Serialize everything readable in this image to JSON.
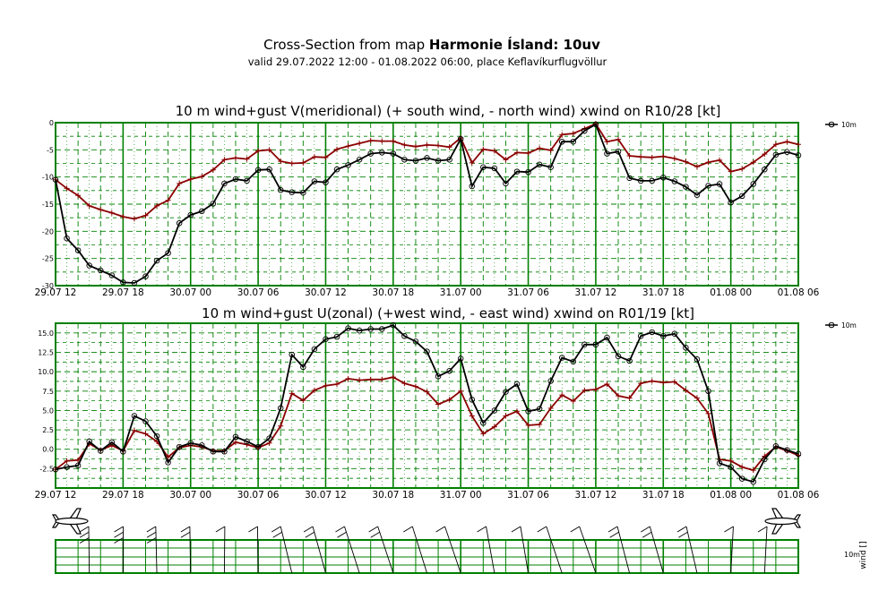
{
  "title": {
    "prefix": "Cross-Section from map ",
    "bold": "Harmonie Ísland: 10uv",
    "subtitle": "valid 29.07.2022 12:00 - 01.08.2022 06:00, place Keflavíkurflugvöllur"
  },
  "colors": {
    "wind": "#000000",
    "gust": "#8b0000",
    "grid": "#008000"
  },
  "x_ticks": [
    "29.07 12",
    "29.07 18",
    "30.07 00",
    "30.07 06",
    "30.07 12",
    "30.07 18",
    "31.07 00",
    "31.07 06",
    "31.07 12",
    "31.07 18",
    "01.08 00",
    "01.08 06"
  ],
  "barbs_panel": {
    "level_label": "10m",
    "axis_label": "wind []"
  },
  "chart_data": [
    {
      "type": "line",
      "title": "10 m wind+gust V(meridional) (+ south wind, - north wind) xwind on R10/28 [kt]",
      "xlabel": "",
      "ylabel": "",
      "ylim": [
        -30,
        0
      ],
      "yticks": [
        0,
        -5,
        -10,
        -15,
        -20,
        -25,
        -30
      ],
      "ytick_labels": [
        "0",
        "-5",
        "-10",
        "-15",
        "-20",
        "-25",
        "-30"
      ],
      "legend": {
        "label": "10m",
        "placement": "top-right outside"
      },
      "x_hours": [
        0,
        1,
        2,
        3,
        4,
        5,
        6,
        7,
        8,
        9,
        10,
        11,
        12,
        13,
        14,
        15,
        16,
        17,
        18,
        19,
        20,
        21,
        22,
        23,
        24,
        25,
        26,
        27,
        28,
        29,
        30,
        31,
        32,
        33,
        34,
        35,
        36,
        37,
        38,
        39,
        40,
        41,
        42,
        43,
        44,
        45,
        46,
        47,
        48,
        49,
        50,
        51,
        52,
        53,
        54,
        55,
        56,
        57,
        58,
        59,
        60,
        61,
        62,
        63,
        64,
        65,
        66
      ],
      "series": [
        {
          "name": "10m wind",
          "values": [
            -10.5,
            -21.3,
            -23.5,
            -26.3,
            -27.2,
            -28.1,
            -29.4,
            -29.5,
            -28.3,
            -25.4,
            -24.0,
            -18.5,
            -17.0,
            -16.3,
            -14.9,
            -11.2,
            -10.4,
            -10.7,
            -8.7,
            -8.6,
            -12.4,
            -12.8,
            -12.9,
            -10.8,
            -11.0,
            -8.6,
            -7.8,
            -6.8,
            -5.7,
            -5.5,
            -5.7,
            -6.8,
            -7.0,
            -6.5,
            -7.0,
            -6.8,
            -3.0,
            -11.7,
            -8.2,
            -8.4,
            -11.2,
            -9.0,
            -9.1,
            -7.7,
            -8.2,
            -3.5,
            -3.5,
            -1.5,
            -0.3,
            -5.7,
            -5.3,
            -10.2,
            -10.7,
            -10.7,
            -10.1,
            -10.8,
            -11.8,
            -13.3,
            -11.6,
            -11.3,
            -14.7,
            -13.5,
            -11.3,
            -8.6,
            -5.9,
            -5.4,
            -6.0
          ]
        },
        {
          "name": "10m gust",
          "values": [
            -10.5,
            -12.1,
            -13.4,
            -15.3,
            -16.0,
            -16.6,
            -17.3,
            -17.7,
            -17.1,
            -15.3,
            -14.3,
            -11.2,
            -10.4,
            -9.9,
            -8.7,
            -6.8,
            -6.5,
            -6.7,
            -5.2,
            -5.0,
            -7.1,
            -7.5,
            -7.4,
            -6.3,
            -6.4,
            -4.9,
            -4.3,
            -3.8,
            -3.3,
            -3.4,
            -3.4,
            -4.1,
            -4.4,
            -4.1,
            -4.2,
            -4.5,
            -2.8,
            -7.4,
            -4.9,
            -5.2,
            -6.8,
            -5.5,
            -5.6,
            -4.7,
            -5.1,
            -2.2,
            -2.0,
            -1.1,
            -0.2,
            -3.5,
            -3.1,
            -6.1,
            -6.3,
            -6.4,
            -6.2,
            -6.6,
            -7.2,
            -8.1,
            -7.3,
            -6.9,
            -9.0,
            -8.5,
            -7.3,
            -5.8,
            -4.0,
            -3.5,
            -4.0
          ]
        }
      ]
    },
    {
      "type": "line",
      "title": "10 m wind+gust U(zonal) (+west wind, - east wind) xwind on R01/19 [kt]",
      "xlabel": "",
      "ylabel": "",
      "ylim": [
        -5,
        16.25
      ],
      "yticks": [
        15,
        12.5,
        10,
        7.5,
        5,
        2.5,
        0,
        -2.5
      ],
      "ytick_labels": [
        "15.0",
        "12.5",
        "10.0",
        "7.5",
        "5.0",
        "2.5",
        "0.0",
        "-2.5"
      ],
      "legend": {
        "label": "10m",
        "placement": "top-right outside"
      },
      "x_hours": [
        0,
        1,
        2,
        3,
        4,
        5,
        6,
        7,
        8,
        9,
        10,
        11,
        12,
        13,
        14,
        15,
        16,
        17,
        18,
        19,
        20,
        21,
        22,
        23,
        24,
        25,
        26,
        27,
        28,
        29,
        30,
        31,
        32,
        33,
        34,
        35,
        36,
        37,
        38,
        39,
        40,
        41,
        42,
        43,
        44,
        45,
        46,
        47,
        48,
        49,
        50,
        51,
        52,
        53,
        54,
        55,
        56,
        57,
        58,
        59,
        60,
        61,
        62,
        63,
        64,
        65,
        66
      ],
      "series": [
        {
          "name": "10m wind",
          "values": [
            -2.6,
            -2.3,
            -2.1,
            1.0,
            -0.2,
            0.9,
            -0.3,
            4.3,
            3.6,
            1.7,
            -1.7,
            0.3,
            0.8,
            0.5,
            -0.3,
            -0.3,
            1.6,
            1.0,
            0.3,
            1.4,
            5.3,
            12.2,
            10.6,
            12.9,
            14.2,
            14.5,
            15.6,
            15.3,
            15.5,
            15.5,
            16.0,
            14.6,
            13.9,
            12.6,
            9.4,
            10.1,
            11.7,
            6.4,
            3.4,
            5.0,
            7.4,
            8.4,
            4.9,
            5.2,
            8.8,
            11.8,
            11.3,
            13.5,
            13.5,
            14.4,
            12.0,
            11.4,
            14.6,
            15.1,
            14.6,
            14.9,
            13.1,
            11.6,
            7.5,
            -1.8,
            -2.3,
            -3.8,
            -4.2,
            -1.3,
            0.4,
            -0.1,
            -0.6
          ]
        },
        {
          "name": "10m gust",
          "values": [
            -2.6,
            -1.5,
            -1.4,
            0.7,
            -0.1,
            0.5,
            -0.2,
            2.4,
            2.0,
            1.0,
            -1.0,
            0.2,
            0.5,
            0.3,
            -0.2,
            -0.2,
            0.9,
            0.6,
            0.2,
            0.8,
            3.0,
            7.2,
            6.3,
            7.6,
            8.2,
            8.4,
            9.1,
            8.9,
            9.0,
            9.0,
            9.3,
            8.5,
            8.1,
            7.4,
            5.8,
            6.4,
            7.5,
            4.3,
            2.0,
            2.9,
            4.3,
            4.9,
            3.1,
            3.2,
            5.3,
            7.0,
            6.2,
            7.6,
            7.7,
            8.4,
            6.9,
            6.6,
            8.5,
            8.8,
            8.6,
            8.7,
            7.6,
            6.6,
            4.6,
            -1.3,
            -1.5,
            -2.3,
            -2.7,
            -0.9,
            0.3,
            -0.2,
            -0.8
          ]
        }
      ]
    }
  ]
}
